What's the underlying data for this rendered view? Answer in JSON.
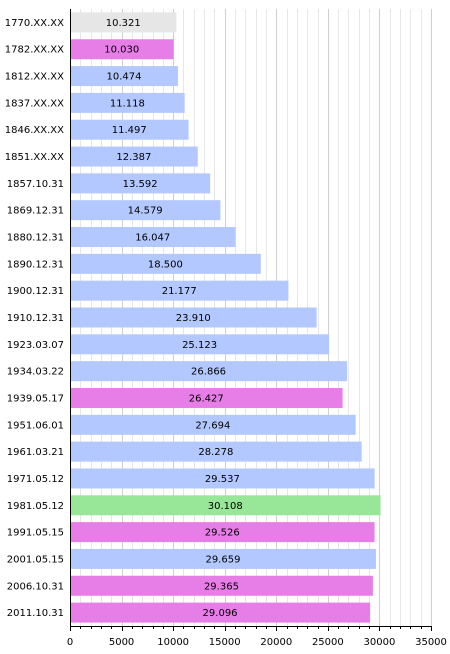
{
  "chart_data": {
    "type": "bar",
    "orientation": "horizontal",
    "grid": true,
    "xlim": [
      0,
      35000
    ],
    "x_ticks": [
      "0",
      "5000",
      "10000",
      "15000",
      "20000",
      "25000",
      "30000",
      "35000"
    ],
    "categories": [
      "1770.XX.XX",
      "1782.XX.XX",
      "1812.XX.XX",
      "1837.XX.XX",
      "1846.XX.XX",
      "1851.XX.XX",
      "1857.10.31",
      "1869.12.31",
      "1880.12.31",
      "1890.12.31",
      "1900.12.31",
      "1910.12.31",
      "1923.03.07",
      "1934.03.22",
      "1939.05.17",
      "1951.06.01",
      "1961.03.21",
      "1971.05.12",
      "1981.05.12",
      "1991.05.15",
      "2001.05.15",
      "2006.10.31",
      "2011.10.31"
    ],
    "values": [
      10321,
      10030,
      10474,
      11118,
      11497,
      12387,
      13592,
      14579,
      16047,
      18500,
      21177,
      23910,
      25123,
      26866,
      26427,
      27694,
      28278,
      29537,
      30108,
      29526,
      29659,
      29365,
      29096
    ],
    "value_labels": [
      "10.321",
      "10.030",
      "10.474",
      "11.118",
      "11.497",
      "12.387",
      "13.592",
      "14.579",
      "16.047",
      "18.500",
      "21.177",
      "23.910",
      "25.123",
      "26.866",
      "26.427",
      "27.694",
      "28.278",
      "29.537",
      "30.108",
      "29.526",
      "29.659",
      "29.365",
      "29.096"
    ],
    "bar_colors": [
      "#e6e6e6",
      "#e77ee7",
      "#b3c8ff",
      "#b3c8ff",
      "#b3c8ff",
      "#b3c8ff",
      "#b3c8ff",
      "#b3c8ff",
      "#b3c8ff",
      "#b3c8ff",
      "#b3c8ff",
      "#b3c8ff",
      "#b3c8ff",
      "#b3c8ff",
      "#e77ee7",
      "#b3c8ff",
      "#b3c8ff",
      "#b3c8ff",
      "#98e698",
      "#e77ee7",
      "#b3c8ff",
      "#e77ee7",
      "#e77ee7"
    ]
  }
}
